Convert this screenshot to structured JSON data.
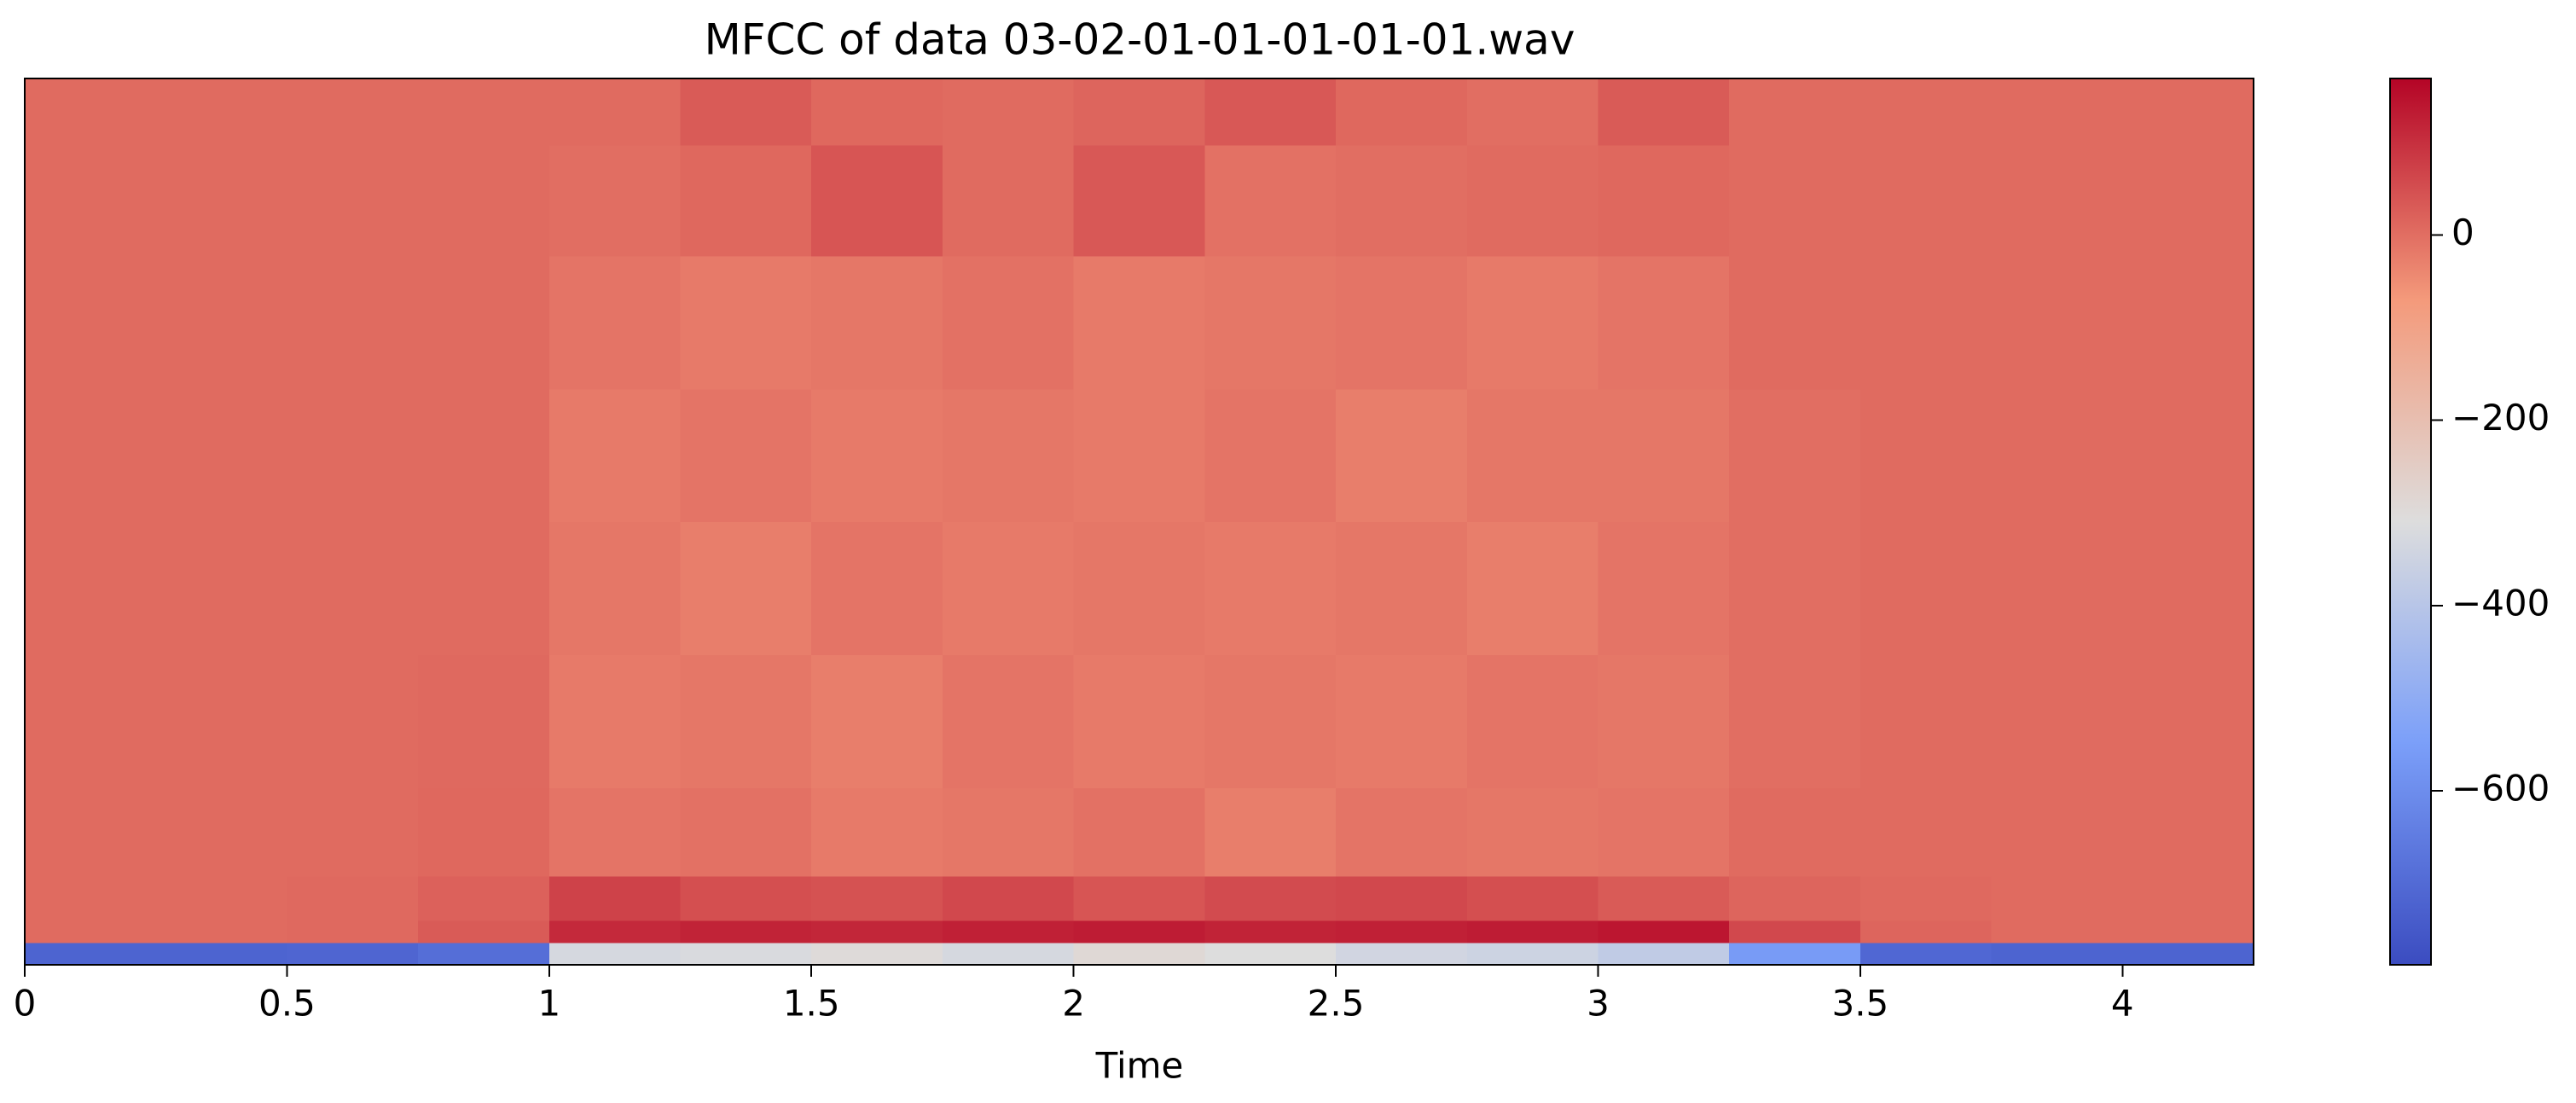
{
  "chart_data": {
    "type": "heatmap",
    "title": "MFCC of data 03-02-01-01-01-01-01.wav",
    "xlabel": "Time",
    "xlim": [
      0,
      4.25
    ],
    "xticks": [
      0,
      0.5,
      1,
      1.5,
      2,
      2.5,
      3,
      3.5,
      4
    ],
    "xbins": [
      0,
      0.25,
      0.5,
      0.75,
      1,
      1.25,
      1.5,
      1.75,
      2,
      2.25,
      2.5,
      2.75,
      3,
      3.25,
      3.5,
      3.75,
      4,
      4.25
    ],
    "ylim": [
      0,
      40
    ],
    "ybins": [
      0,
      1,
      2,
      4,
      8,
      14,
      20,
      26,
      32,
      37,
      40
    ],
    "values": [
      [
        -720,
        -720,
        -715,
        -690,
        -330,
        -320,
        -300,
        -330,
        -290,
        -310,
        -340,
        -350,
        -380,
        -560,
        -710,
        -720,
        -720
      ],
      [
        5,
        5,
        8,
        30,
        110,
        120,
        115,
        125,
        130,
        120,
        125,
        130,
        140,
        60,
        15,
        5,
        5
      ],
      [
        5,
        5,
        8,
        20,
        70,
        50,
        45,
        60,
        40,
        55,
        60,
        50,
        30,
        15,
        8,
        5,
        5
      ],
      [
        5,
        5,
        5,
        10,
        -10,
        -5,
        -20,
        -15,
        -5,
        -25,
        -10,
        -15,
        -10,
        5,
        5,
        5,
        5
      ],
      [
        5,
        5,
        5,
        8,
        -20,
        -15,
        -25,
        -10,
        -20,
        -15,
        -20,
        -10,
        -15,
        0,
        5,
        5,
        5
      ],
      [
        5,
        5,
        5,
        5,
        -15,
        -25,
        -10,
        -20,
        -15,
        -20,
        -15,
        -25,
        -10,
        0,
        5,
        5,
        5
      ],
      [
        5,
        5,
        5,
        5,
        -20,
        -10,
        -20,
        -15,
        -20,
        -10,
        -25,
        -15,
        -15,
        0,
        5,
        5,
        5
      ],
      [
        5,
        5,
        5,
        5,
        -10,
        -20,
        -15,
        -5,
        -20,
        -15,
        -10,
        -20,
        -10,
        5,
        5,
        5,
        5
      ],
      [
        5,
        5,
        5,
        5,
        0,
        10,
        40,
        5,
        35,
        -5,
        0,
        5,
        10,
        5,
        5,
        5,
        5
      ],
      [
        5,
        5,
        5,
        5,
        5,
        30,
        10,
        5,
        15,
        35,
        10,
        0,
        30,
        5,
        5,
        5,
        5
      ]
    ],
    "clim": [
      -788,
      169
    ],
    "cticks": [
      {
        "value": -600,
        "label": "−600"
      },
      {
        "value": -400,
        "label": "−400"
      },
      {
        "value": -200,
        "label": "−200"
      },
      0
    ],
    "cmap_colors": [
      "#3b4cc0",
      "#7b9ff9",
      "#dddddd",
      "#f49a7b",
      "#b40426"
    ]
  }
}
